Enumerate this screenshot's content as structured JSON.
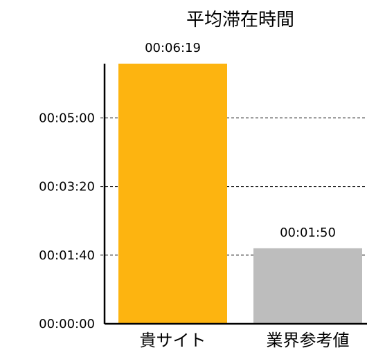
{
  "chart_data": {
    "type": "bar",
    "title": "平均滞在時間",
    "categories": [
      "貴サイト",
      "業界参考値"
    ],
    "values": [
      379,
      110
    ],
    "value_labels": [
      "00:06:19",
      "00:01:50"
    ],
    "y_ticks": [
      {
        "value": 0,
        "label": "00:00:00"
      },
      {
        "value": 100,
        "label": "00:01:40"
      },
      {
        "value": 200,
        "label": "00:03:20"
      },
      {
        "value": 300,
        "label": "00:05:00"
      }
    ],
    "ylim": [
      0,
      379
    ],
    "grid": "dashed horizontal",
    "colors": [
      "#FDB410",
      "#BDBDBD"
    ],
    "xlabel": "",
    "ylabel": ""
  }
}
